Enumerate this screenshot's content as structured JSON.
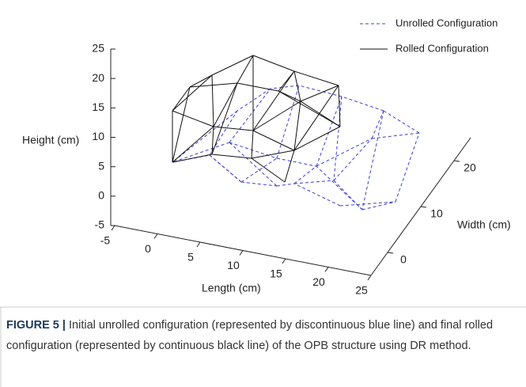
{
  "chart_data": {
    "type": "wireframe3d",
    "xlabel": "Length (cm)",
    "ylabel": "Width (cm)",
    "zlabel": "Height (cm)",
    "xlim": [
      -5,
      25
    ],
    "xticks": [
      -5,
      0,
      5,
      10,
      15,
      20,
      25
    ],
    "ylim": [
      -5,
      25
    ],
    "yticks": [
      0,
      10,
      20
    ],
    "zlim": [
      -5,
      25
    ],
    "zticks": [
      -5,
      0,
      5,
      10,
      15,
      20,
      25
    ],
    "series": [
      {
        "name": "Unrolled Configuration",
        "color": "#3a3fd0",
        "linestyle": "dashed"
      },
      {
        "name": "Rolled Configuration",
        "color": "#111111",
        "linestyle": "solid"
      }
    ]
  },
  "caption": {
    "label": "FIGURE 5 |",
    "text": "Initial unrolled configuration (represented by discontinuous blue line) and final rolled configuration (represented by continuous black line) of the OPB structure using DR method."
  }
}
